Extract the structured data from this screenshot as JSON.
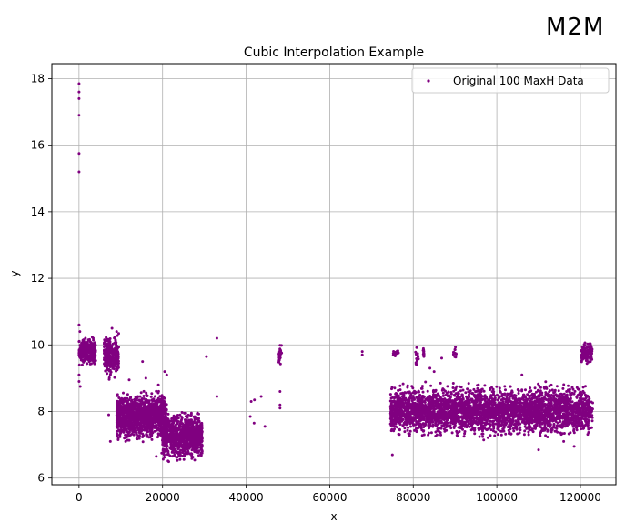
{
  "chart_data": {
    "type": "scatter",
    "title": "Cubic Interpolation Example",
    "xlabel": "x",
    "ylabel": "y",
    "xlim": [
      -6500,
      128500
    ],
    "ylim": [
      5.8,
      18.45
    ],
    "xticks": [
      0,
      20000,
      40000,
      60000,
      80000,
      100000,
      120000
    ],
    "xtick_labels": [
      "0",
      "20000",
      "40000",
      "60000",
      "80000",
      "100000",
      "120000"
    ],
    "yticks": [
      6,
      8,
      10,
      12,
      14,
      16,
      18
    ],
    "ytick_labels": [
      "6",
      "8",
      "10",
      "12",
      "14",
      "16",
      "18"
    ],
    "grid": true,
    "legend_position": "top-right",
    "series": [
      {
        "name": "Original 100 MaxH Data",
        "color": "#800080",
        "marker": "point",
        "points": [
          [
            0,
            17.85
          ],
          [
            0,
            17.6
          ],
          [
            0,
            17.4
          ],
          [
            0,
            16.9
          ],
          [
            0,
            15.75
          ],
          [
            0,
            15.2
          ],
          [
            0,
            10.6
          ],
          [
            200,
            10.4
          ],
          [
            0,
            10.1
          ],
          [
            300,
            9.9
          ],
          [
            0,
            9.7
          ],
          [
            500,
            9.6
          ],
          [
            100,
            9.4
          ],
          [
            0,
            9.1
          ],
          [
            0,
            8.9
          ],
          [
            300,
            8.75
          ],
          [
            900,
            9.8
          ],
          [
            1400,
            9.7
          ],
          [
            1900,
            10.0
          ],
          [
            2400,
            9.6
          ],
          [
            2900,
            9.9
          ],
          [
            3400,
            10.2
          ],
          [
            3900,
            9.8
          ],
          [
            6300,
            9.7
          ],
          [
            6700,
            9.3
          ],
          [
            7100,
            10.0
          ],
          [
            7500,
            9.1
          ],
          [
            7900,
            10.5
          ],
          [
            8300,
            9.5
          ],
          [
            8700,
            9.8
          ],
          [
            9000,
            10.4
          ],
          [
            7100,
            7.9
          ],
          [
            7500,
            7.1
          ],
          [
            33000,
            10.2
          ],
          [
            30500,
            9.65
          ],
          [
            33000,
            8.45
          ],
          [
            41200,
            8.3
          ],
          [
            42000,
            8.35
          ],
          [
            43600,
            8.45
          ],
          [
            41000,
            7.85
          ],
          [
            41900,
            7.65
          ],
          [
            44500,
            7.55
          ],
          [
            48100,
            8.1
          ],
          [
            48100,
            8.2
          ],
          [
            48100,
            8.6
          ],
          [
            67800,
            9.8
          ],
          [
            67800,
            9.7
          ],
          [
            75000,
            6.7
          ],
          [
            76600,
            8.4
          ],
          [
            84000,
            9.3
          ],
          [
            85000,
            9.2
          ],
          [
            86800,
            9.6
          ],
          [
            106000,
            9.1
          ],
          [
            110000,
            6.85
          ],
          [
            116000,
            7.1
          ],
          [
            118500,
            6.95
          ],
          [
            12000,
            8.95
          ],
          [
            15200,
            9.5
          ],
          [
            16000,
            9.0
          ],
          [
            19000,
            8.8
          ],
          [
            20500,
            9.2
          ],
          [
            21000,
            9.1
          ],
          [
            18500,
            6.65
          ],
          [
            19800,
            6.75
          ]
        ],
        "clusters": [
          {
            "x_range": [
              0,
              4000
            ],
            "y_range": [
              9.3,
              10.3
            ],
            "count": 340
          },
          {
            "x_range": [
              6000,
              9500
            ],
            "y_range": [
              8.9,
              10.45
            ],
            "count": 300
          },
          {
            "x_range": [
              9000,
              21000
            ],
            "y_range": [
              7.0,
              8.7
            ],
            "count": 1400
          },
          {
            "x_range": [
              20000,
              29500
            ],
            "y_range": [
              6.4,
              8.1
            ],
            "count": 1000
          },
          {
            "x_range": [
              47800,
              48500
            ],
            "y_range": [
              9.3,
              10.05
            ],
            "count": 25
          },
          {
            "x_range": [
              74500,
              122000
            ],
            "y_range": [
              7.1,
              8.95
            ],
            "count": 3500
          },
          {
            "x_range": [
              75000,
              76500
            ],
            "y_range": [
              9.6,
              9.95
            ],
            "count": 12
          },
          {
            "x_range": [
              80500,
              81300
            ],
            "y_range": [
              9.3,
              10.0
            ],
            "count": 15
          },
          {
            "x_range": [
              82300,
              82600
            ],
            "y_range": [
              9.5,
              10.0
            ],
            "count": 12
          },
          {
            "x_range": [
              89600,
              90300
            ],
            "y_range": [
              9.5,
              10.05
            ],
            "count": 16
          },
          {
            "x_range": [
              120200,
              122800
            ],
            "y_range": [
              9.35,
              10.2
            ],
            "count": 120
          },
          {
            "x_range": [
              121800,
              123000
            ],
            "y_range": [
              7.4,
              8.6
            ],
            "count": 40
          }
        ]
      }
    ]
  },
  "branding": {
    "logo_text": "M2M"
  }
}
